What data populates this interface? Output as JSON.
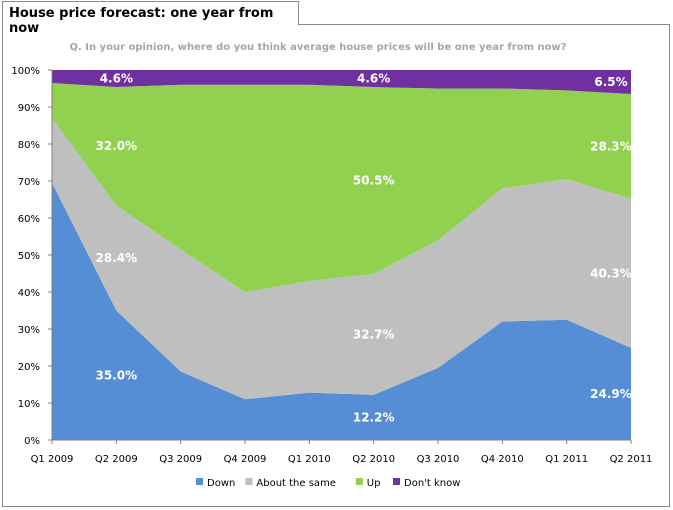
{
  "tab_title": "House price forecast: one year from now",
  "chart_data": {
    "type": "area",
    "stacked": true,
    "subtitle": "Q. In your opinion, where do you think average house prices will be one year from now?",
    "categories": [
      "Q1 2009",
      "Q2 2009",
      "Q3 2009",
      "Q4 2009",
      "Q1 2010",
      "Q2 2010",
      "Q3 2010",
      "Q4 2010",
      "Q1 2011",
      "Q2 2011"
    ],
    "y_ticks": [
      "0%",
      "10%",
      "20%",
      "30%",
      "40%",
      "50%",
      "60%",
      "70%",
      "80%",
      "90%",
      "100%"
    ],
    "ylim": [
      0,
      100
    ],
    "grid": false,
    "legend_position": "bottom",
    "series": [
      {
        "name": "Down",
        "color": "#558ed5",
        "values": [
          69.5,
          35.0,
          18.5,
          11.0,
          12.8,
          12.2,
          19.5,
          32.0,
          32.5,
          24.9
        ]
      },
      {
        "name": "About the same",
        "color": "#bfbfbf",
        "values": [
          17.5,
          28.4,
          33.0,
          29.0,
          30.2,
          32.7,
          34.5,
          36.0,
          38.0,
          40.3
        ]
      },
      {
        "name": "Up",
        "color": "#92d050",
        "values": [
          9.5,
          32.0,
          44.5,
          56.0,
          53.0,
          50.5,
          41.0,
          27.0,
          24.0,
          28.3
        ]
      },
      {
        "name": "Don't know",
        "color": "#7030a0",
        "values": [
          3.5,
          4.6,
          4.0,
          4.0,
          4.0,
          4.6,
          5.0,
          5.0,
          5.5,
          6.5
        ]
      }
    ],
    "data_labels": [
      {
        "text": "4.6%",
        "category": 1,
        "series": 3
      },
      {
        "text": "32.0%",
        "category": 1,
        "series": 2
      },
      {
        "text": "28.4%",
        "category": 1,
        "series": 1
      },
      {
        "text": "35.0%",
        "category": 1,
        "series": 0
      },
      {
        "text": "4.6%",
        "category": 5,
        "series": 3
      },
      {
        "text": "50.5%",
        "category": 5,
        "series": 2
      },
      {
        "text": "32.7%",
        "category": 5,
        "series": 1
      },
      {
        "text": "12.2%",
        "category": 5,
        "series": 0
      },
      {
        "text": "6.5%",
        "category": 9,
        "series": 3
      },
      {
        "text": "28.3%",
        "category": 9,
        "series": 2
      },
      {
        "text": "40.3%",
        "category": 9,
        "series": 1
      },
      {
        "text": "24.9%",
        "category": 9,
        "series": 0
      }
    ]
  }
}
